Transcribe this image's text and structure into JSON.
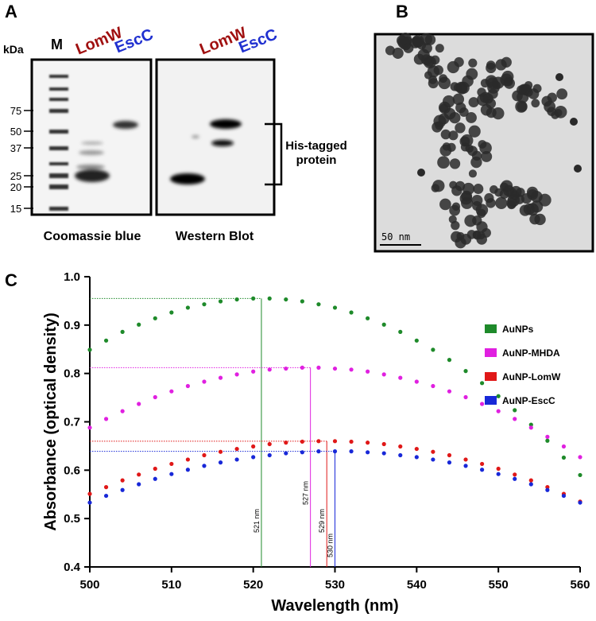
{
  "panel_a": {
    "label": "A",
    "unit": "kDa",
    "marker_lane": "M",
    "lanes": [
      {
        "name": "LomW",
        "color": "#a01010"
      },
      {
        "name": "EscC",
        "color": "#2030d0"
      },
      {
        "name": "LomW",
        "color": "#a01010"
      },
      {
        "name": "EscC",
        "color": "#2030d0"
      }
    ],
    "marker_kda": [
      75,
      50,
      37,
      25,
      20,
      15
    ],
    "bracket_label": [
      "His-tagged",
      "protein"
    ],
    "gels": [
      "Coomassie blue",
      "Western Blot"
    ]
  },
  "panel_b": {
    "label": "B",
    "scale_bar": "50 nm"
  },
  "chart_data": {
    "type": "scatter",
    "panel_label": "C",
    "x_label": "Wavelength (nm)",
    "y_label": "Absorbance (optical density)",
    "x": [
      500,
      502,
      504,
      506,
      508,
      510,
      512,
      514,
      516,
      518,
      520,
      522,
      524,
      526,
      528,
      530,
      532,
      534,
      536,
      538,
      540,
      542,
      544,
      546,
      548,
      550,
      552,
      554,
      556,
      558,
      560
    ],
    "series": [
      {
        "name": "AuNPs",
        "color": "#1e8a2a",
        "values": [
          0.849,
          0.868,
          0.886,
          0.901,
          0.914,
          0.926,
          0.936,
          0.943,
          0.949,
          0.953,
          0.955,
          0.955,
          0.953,
          0.949,
          0.943,
          0.936,
          0.926,
          0.914,
          0.901,
          0.886,
          0.868,
          0.849,
          0.828,
          0.805,
          0.78,
          0.753,
          0.724,
          0.694,
          0.661,
          0.626,
          0.59
        ]
      },
      {
        "name": "AuNP-MHDA",
        "color": "#e020e0",
        "values": [
          0.688,
          0.706,
          0.722,
          0.737,
          0.751,
          0.763,
          0.774,
          0.783,
          0.791,
          0.798,
          0.804,
          0.808,
          0.81,
          0.812,
          0.812,
          0.81,
          0.808,
          0.804,
          0.798,
          0.791,
          0.783,
          0.774,
          0.763,
          0.751,
          0.737,
          0.722,
          0.706,
          0.688,
          0.669,
          0.649,
          0.627
        ]
      },
      {
        "name": "AuNP-LomW",
        "color": "#e01818",
        "values": [
          0.551,
          0.565,
          0.579,
          0.591,
          0.603,
          0.613,
          0.622,
          0.631,
          0.638,
          0.644,
          0.649,
          0.654,
          0.657,
          0.659,
          0.66,
          0.66,
          0.659,
          0.657,
          0.654,
          0.649,
          0.644,
          0.638,
          0.631,
          0.622,
          0.613,
          0.603,
          0.591,
          0.579,
          0.565,
          0.551,
          0.535
        ]
      },
      {
        "name": "AuNP-EscC",
        "color": "#1828d8",
        "values": [
          0.533,
          0.547,
          0.559,
          0.571,
          0.582,
          0.592,
          0.601,
          0.609,
          0.616,
          0.622,
          0.627,
          0.631,
          0.635,
          0.637,
          0.639,
          0.639,
          0.639,
          0.637,
          0.635,
          0.631,
          0.627,
          0.622,
          0.616,
          0.609,
          0.601,
          0.592,
          0.582,
          0.571,
          0.559,
          0.547,
          0.533
        ]
      }
    ],
    "annotations": [
      {
        "text": "521 nm",
        "x": 521,
        "y": 0.955,
        "color": "#1e8a2a"
      },
      {
        "text": "527 nm",
        "x": 527,
        "y": 0.812,
        "color": "#e020e0"
      },
      {
        "text": "529 nm",
        "x": 529,
        "y": 0.66,
        "color": "#e01818"
      },
      {
        "text": "530 nm",
        "x": 530,
        "y": 0.639,
        "color": "#1828d8"
      }
    ],
    "xlim": [
      500,
      560
    ],
    "xticks": [
      500,
      510,
      520,
      530,
      540,
      550,
      560
    ],
    "ylim": [
      0.4,
      1.0
    ],
    "yticks": [
      0.4,
      0.5,
      0.6,
      0.7,
      0.8,
      0.9,
      {
        "value": 1.0,
        "label": "1.0"
      }
    ],
    "legend": "right"
  }
}
